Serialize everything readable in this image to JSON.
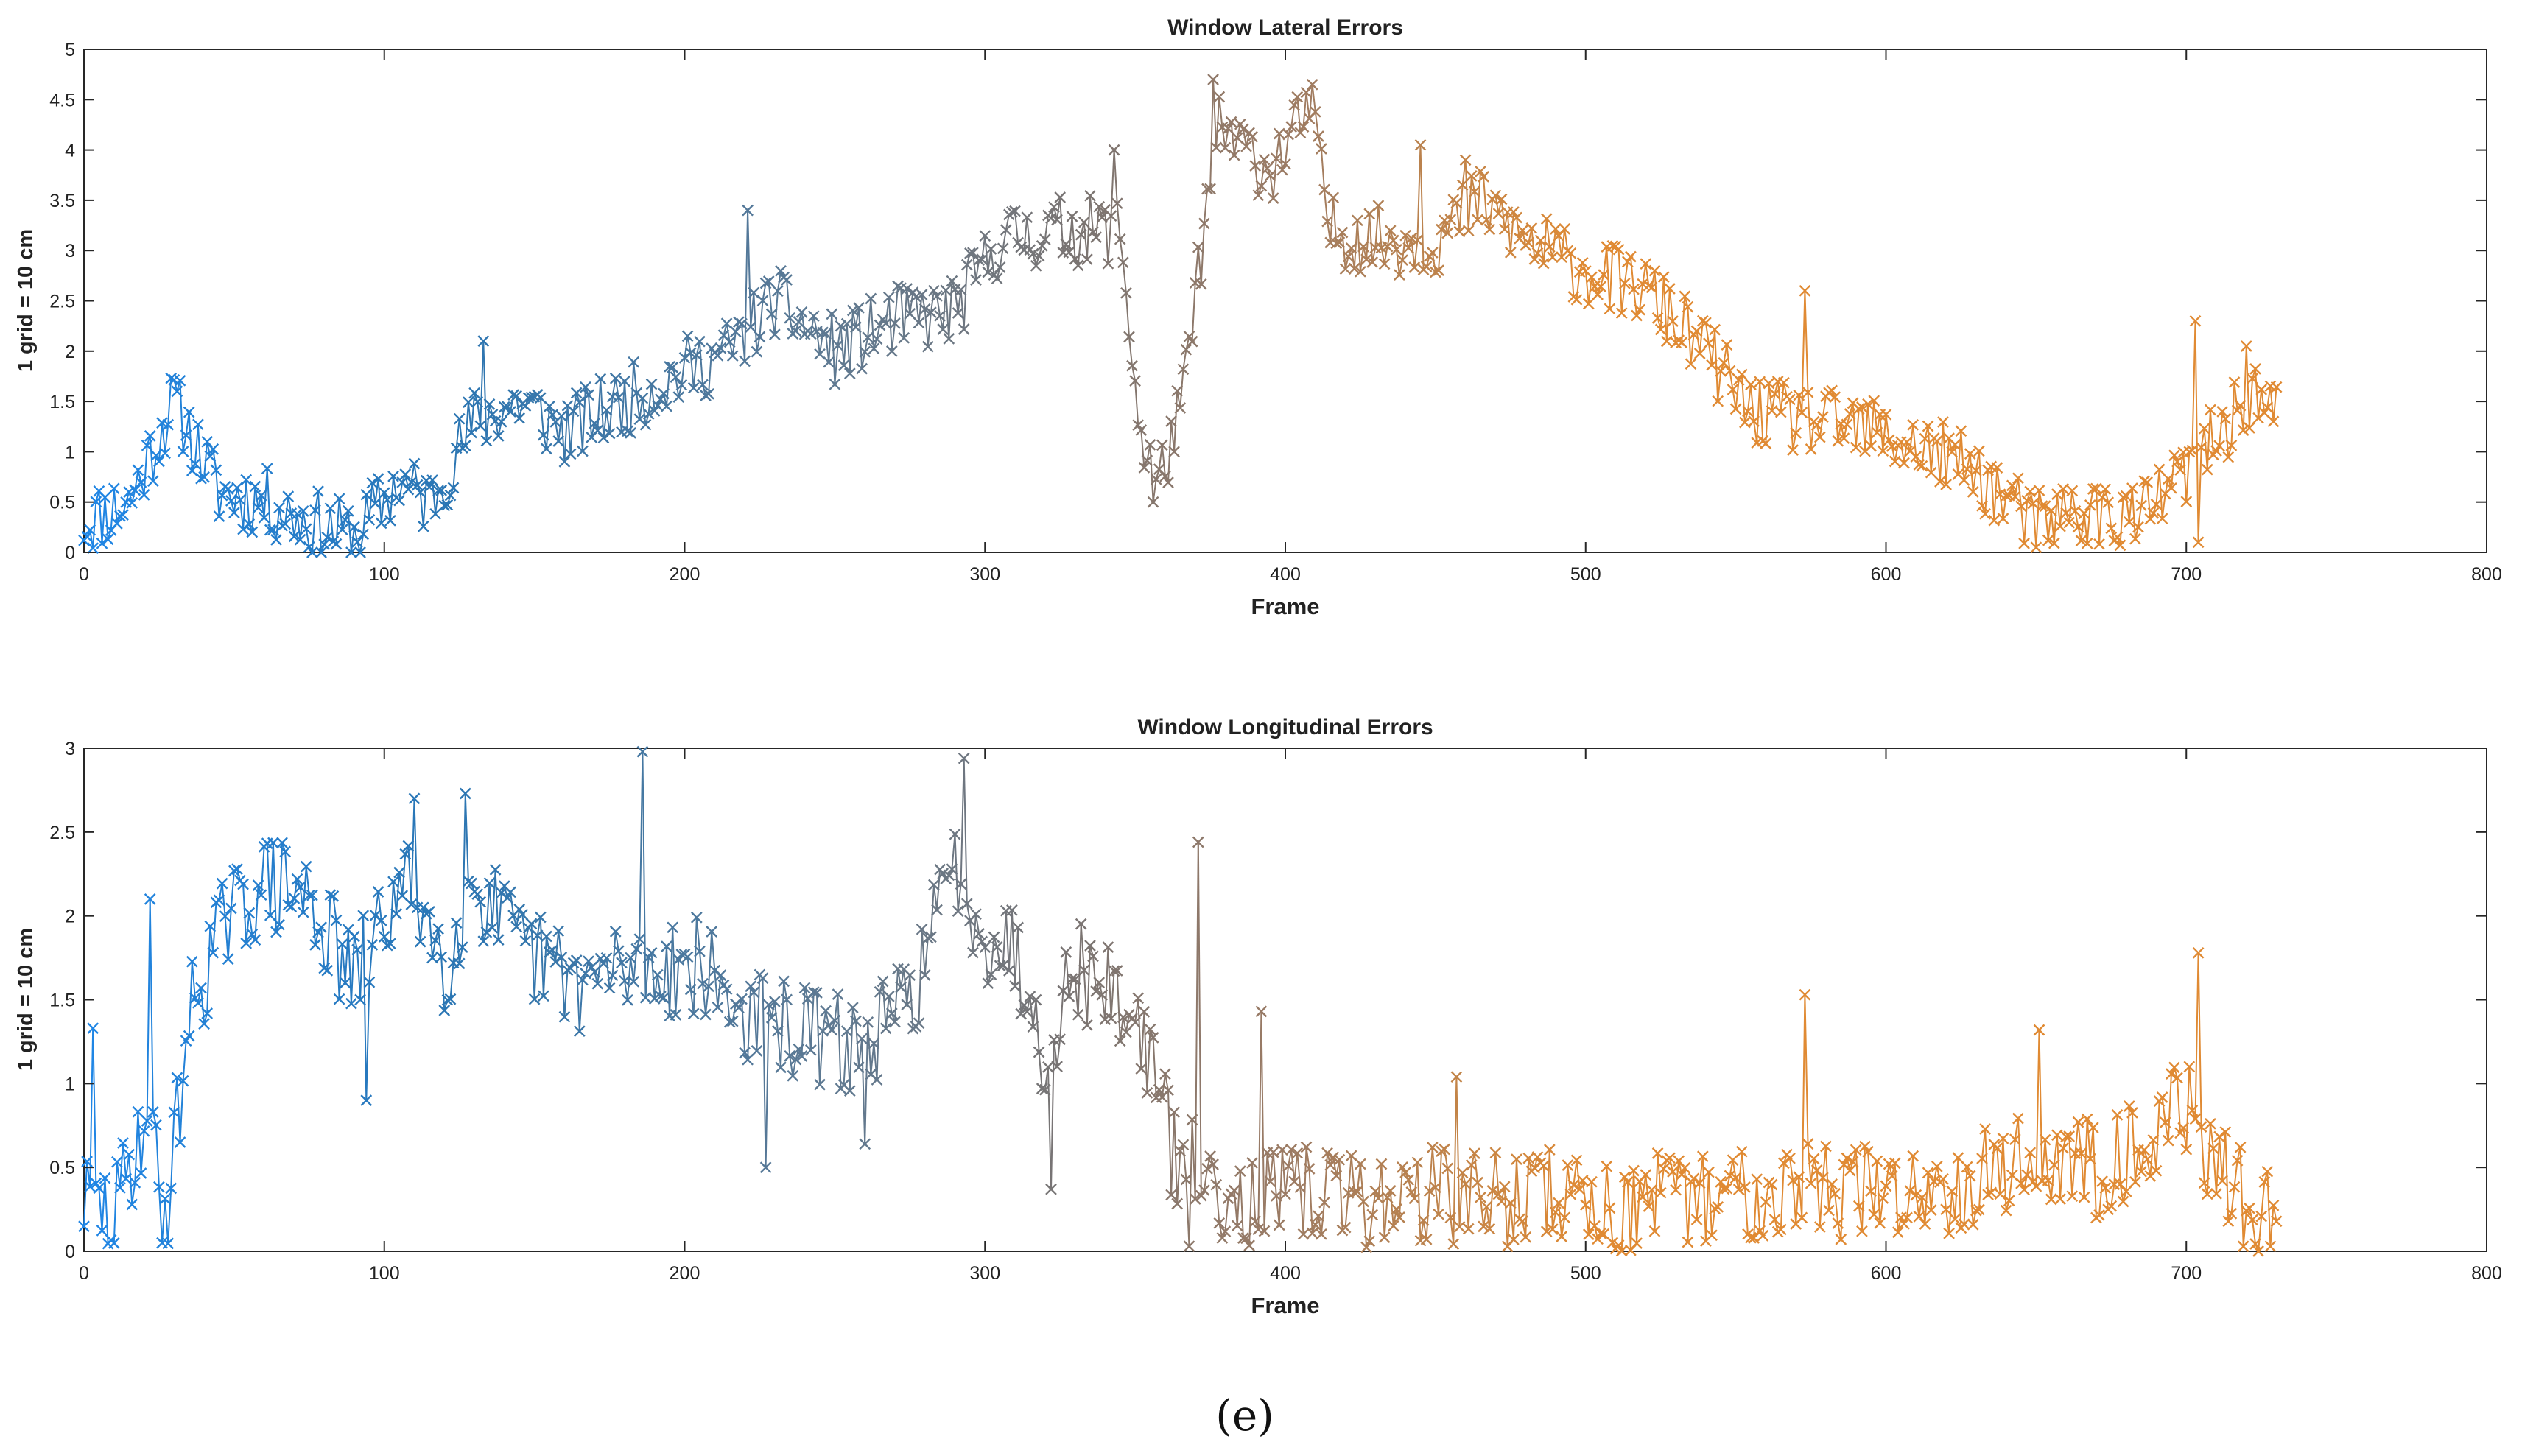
{
  "caption": "(e)",
  "colors": {
    "segments": [
      "#1f86e6",
      "#2a76b4",
      "#5f7991",
      "#7a7472",
      "#9b7b64",
      "#e08a33"
    ],
    "axes": "#262626",
    "text": "#222222"
  },
  "chart_data": [
    {
      "type": "line",
      "marker": "x",
      "title": "Window Lateral Errors",
      "xlabel": "Frame",
      "ylabel": "1 grid = 10 cm",
      "xlim": [
        0,
        800
      ],
      "ylim": [
        0,
        5
      ],
      "xticks": [
        0,
        100,
        200,
        300,
        400,
        500,
        600,
        700,
        800
      ],
      "yticks": [
        0,
        0.5,
        1,
        1.5,
        2,
        2.5,
        3,
        3.5,
        4,
        4.5,
        5
      ],
      "grid": false,
      "color_segments_x": [
        0,
        120,
        250,
        330,
        400,
        500,
        730
      ],
      "x_range": [
        0,
        730
      ],
      "keypoints": [
        {
          "x": 0,
          "y": 0.3
        },
        {
          "x": 15,
          "y": 0.5
        },
        {
          "x": 30,
          "y": 1.5
        },
        {
          "x": 45,
          "y": 0.6
        },
        {
          "x": 60,
          "y": 0.5
        },
        {
          "x": 75,
          "y": 0.3
        },
        {
          "x": 90,
          "y": 0.15
        },
        {
          "x": 105,
          "y": 0.7
        },
        {
          "x": 115,
          "y": 0.5
        },
        {
          "x": 130,
          "y": 1.3
        },
        {
          "x": 145,
          "y": 1.5
        },
        {
          "x": 160,
          "y": 1.2
        },
        {
          "x": 180,
          "y": 1.5
        },
        {
          "x": 200,
          "y": 1.8
        },
        {
          "x": 215,
          "y": 2.0
        },
        {
          "x": 230,
          "y": 2.5
        },
        {
          "x": 250,
          "y": 2.0
        },
        {
          "x": 270,
          "y": 2.3
        },
        {
          "x": 290,
          "y": 2.4
        },
        {
          "x": 305,
          "y": 3.1
        },
        {
          "x": 325,
          "y": 3.2
        },
        {
          "x": 345,
          "y": 3.2
        },
        {
          "x": 352,
          "y": 1.1
        },
        {
          "x": 358,
          "y": 0.7
        },
        {
          "x": 366,
          "y": 1.5
        },
        {
          "x": 372,
          "y": 3.0
        },
        {
          "x": 378,
          "y": 4.2
        },
        {
          "x": 395,
          "y": 3.8
        },
        {
          "x": 408,
          "y": 4.4
        },
        {
          "x": 415,
          "y": 3.2
        },
        {
          "x": 430,
          "y": 3.1
        },
        {
          "x": 450,
          "y": 3.1
        },
        {
          "x": 465,
          "y": 3.5
        },
        {
          "x": 480,
          "y": 3.1
        },
        {
          "x": 500,
          "y": 2.8
        },
        {
          "x": 520,
          "y": 2.6
        },
        {
          "x": 540,
          "y": 2.0
        },
        {
          "x": 555,
          "y": 1.4
        },
        {
          "x": 575,
          "y": 1.3
        },
        {
          "x": 595,
          "y": 1.2
        },
        {
          "x": 615,
          "y": 1.0
        },
        {
          "x": 630,
          "y": 0.8
        },
        {
          "x": 648,
          "y": 0.3
        },
        {
          "x": 665,
          "y": 0.4
        },
        {
          "x": 685,
          "y": 0.35
        },
        {
          "x": 700,
          "y": 0.8
        },
        {
          "x": 712,
          "y": 1.2
        },
        {
          "x": 722,
          "y": 1.6
        },
        {
          "x": 730,
          "y": 1.35
        }
      ],
      "noise": 0.35,
      "spikes": [
        {
          "x": 133,
          "y": 2.1
        },
        {
          "x": 221,
          "y": 3.4
        },
        {
          "x": 343,
          "y": 4.0
        },
        {
          "x": 376,
          "y": 4.7
        },
        {
          "x": 409,
          "y": 4.65
        },
        {
          "x": 445,
          "y": 4.05
        },
        {
          "x": 460,
          "y": 3.9
        },
        {
          "x": 573,
          "y": 2.6
        },
        {
          "x": 703,
          "y": 2.3
        },
        {
          "x": 720,
          "y": 2.05
        }
      ],
      "dips": [
        {
          "x": 356,
          "y": 0.5
        },
        {
          "x": 704,
          "y": 0.1
        },
        {
          "x": 650,
          "y": 0.05
        }
      ],
      "seed": 11
    },
    {
      "type": "line",
      "marker": "x",
      "title": "Window Longitudinal Errors",
      "xlabel": "Frame",
      "ylabel": "1 grid = 10 cm",
      "xlim": [
        0,
        800
      ],
      "ylim": [
        0,
        3
      ],
      "xticks": [
        0,
        100,
        200,
        300,
        400,
        500,
        600,
        700,
        800
      ],
      "yticks": [
        0,
        0.5,
        1,
        1.5,
        2,
        2.5,
        3
      ],
      "grid": false,
      "color_segments_x": [
        0,
        120,
        250,
        330,
        400,
        500,
        730
      ],
      "x_range": [
        0,
        730
      ],
      "keypoints": [
        {
          "x": 0,
          "y": 0.3
        },
        {
          "x": 10,
          "y": 0.2
        },
        {
          "x": 20,
          "y": 0.8
        },
        {
          "x": 28,
          "y": 0.3
        },
        {
          "x": 35,
          "y": 1.4
        },
        {
          "x": 45,
          "y": 1.9
        },
        {
          "x": 60,
          "y": 2.2
        },
        {
          "x": 75,
          "y": 2.1
        },
        {
          "x": 90,
          "y": 1.6
        },
        {
          "x": 100,
          "y": 2.0
        },
        {
          "x": 110,
          "y": 2.2
        },
        {
          "x": 120,
          "y": 1.7
        },
        {
          "x": 130,
          "y": 2.2
        },
        {
          "x": 145,
          "y": 1.8
        },
        {
          "x": 165,
          "y": 1.6
        },
        {
          "x": 185,
          "y": 1.7
        },
        {
          "x": 205,
          "y": 1.7
        },
        {
          "x": 220,
          "y": 1.4
        },
        {
          "x": 240,
          "y": 1.3
        },
        {
          "x": 260,
          "y": 1.2
        },
        {
          "x": 275,
          "y": 1.5
        },
        {
          "x": 290,
          "y": 2.3
        },
        {
          "x": 300,
          "y": 1.9
        },
        {
          "x": 310,
          "y": 1.8
        },
        {
          "x": 320,
          "y": 1.2
        },
        {
          "x": 330,
          "y": 1.7
        },
        {
          "x": 345,
          "y": 1.5
        },
        {
          "x": 355,
          "y": 1.2
        },
        {
          "x": 362,
          "y": 0.6
        },
        {
          "x": 375,
          "y": 0.4
        },
        {
          "x": 390,
          "y": 0.3
        },
        {
          "x": 410,
          "y": 0.35
        },
        {
          "x": 430,
          "y": 0.3
        },
        {
          "x": 450,
          "y": 0.35
        },
        {
          "x": 470,
          "y": 0.3
        },
        {
          "x": 490,
          "y": 0.35
        },
        {
          "x": 510,
          "y": 0.25
        },
        {
          "x": 530,
          "y": 0.3
        },
        {
          "x": 550,
          "y": 0.35
        },
        {
          "x": 570,
          "y": 0.4
        },
        {
          "x": 590,
          "y": 0.35
        },
        {
          "x": 610,
          "y": 0.35
        },
        {
          "x": 630,
          "y": 0.45
        },
        {
          "x": 650,
          "y": 0.55
        },
        {
          "x": 670,
          "y": 0.5
        },
        {
          "x": 690,
          "y": 0.7
        },
        {
          "x": 700,
          "y": 0.9
        },
        {
          "x": 708,
          "y": 0.5
        },
        {
          "x": 720,
          "y": 0.3
        },
        {
          "x": 730,
          "y": 0.2
        }
      ],
      "noise": 0.3,
      "spikes": [
        {
          "x": 3,
          "y": 1.33
        },
        {
          "x": 22,
          "y": 2.1
        },
        {
          "x": 186,
          "y": 2.98
        },
        {
          "x": 293,
          "y": 2.94
        },
        {
          "x": 371,
          "y": 2.44
        },
        {
          "x": 392,
          "y": 1.43
        },
        {
          "x": 457,
          "y": 1.04
        },
        {
          "x": 573,
          "y": 1.53
        },
        {
          "x": 651,
          "y": 1.32
        },
        {
          "x": 704,
          "y": 1.78
        },
        {
          "x": 127,
          "y": 2.73
        },
        {
          "x": 110,
          "y": 2.7
        }
      ],
      "dips": [
        {
          "x": 94,
          "y": 0.9
        },
        {
          "x": 227,
          "y": 0.5
        },
        {
          "x": 260,
          "y": 0.64
        },
        {
          "x": 322,
          "y": 0.37
        },
        {
          "x": 368,
          "y": 0.03
        },
        {
          "x": 26,
          "y": 0.05
        }
      ],
      "seed": 29
    }
  ]
}
